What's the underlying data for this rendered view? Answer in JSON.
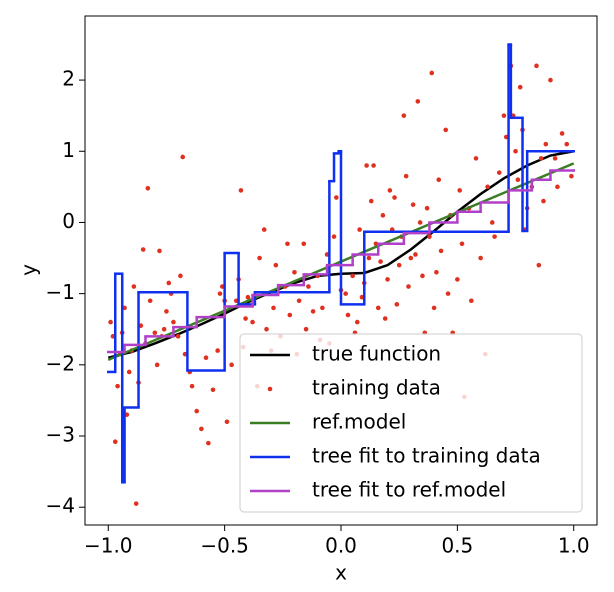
{
  "chart_data": {
    "type": "line",
    "x_label": "x",
    "y_label": "y",
    "xlim": [
      -1.1,
      1.1
    ],
    "ylim": [
      -4.25,
      2.9
    ],
    "xticks": [
      {
        "value": -1.0,
        "label": "−1.0"
      },
      {
        "value": -0.5,
        "label": "−0.5"
      },
      {
        "value": 0.0,
        "label": "0.0"
      },
      {
        "value": 0.5,
        "label": "0.5"
      },
      {
        "value": 1.0,
        "label": "1.0"
      }
    ],
    "yticks": [
      {
        "value": -4,
        "label": "−4"
      },
      {
        "value": -3,
        "label": "−3"
      },
      {
        "value": -2,
        "label": "−2"
      },
      {
        "value": -1,
        "label": "−1"
      },
      0,
      1,
      2
    ],
    "legend": "lower right",
    "series": [
      {
        "name": "true function",
        "type": "line",
        "color": "#000000",
        "x": [
          -1.0,
          -0.9,
          -0.8,
          -0.7,
          -0.6,
          -0.5,
          -0.4,
          -0.3,
          -0.2,
          -0.1,
          0.0,
          0.1,
          0.2,
          0.3,
          0.4,
          0.5,
          0.6,
          0.7,
          0.8,
          0.9,
          1.0
        ],
        "values": [
          -1.9,
          -1.82,
          -1.7,
          -1.57,
          -1.43,
          -1.28,
          -1.12,
          -0.98,
          -0.85,
          -0.75,
          -0.72,
          -0.71,
          -0.6,
          -0.38,
          -0.12,
          0.15,
          0.4,
          0.62,
          0.8,
          0.94,
          1.0
        ]
      },
      {
        "name": "training data",
        "type": "scatter",
        "color": "#e03020",
        "x": [
          -0.99,
          -0.98,
          -0.97,
          -0.96,
          -0.95,
          -0.94,
          -0.93,
          -0.92,
          -0.91,
          -0.9,
          -0.89,
          -0.88,
          -0.87,
          -0.86,
          -0.85,
          -0.84,
          -0.83,
          -0.82,
          -0.8,
          -0.79,
          -0.78,
          -0.77,
          -0.76,
          -0.75,
          -0.74,
          -0.73,
          -0.72,
          -0.7,
          -0.69,
          -0.68,
          -0.67,
          -0.65,
          -0.64,
          -0.62,
          -0.6,
          -0.58,
          -0.57,
          -0.55,
          -0.53,
          -0.52,
          -0.51,
          -0.5,
          -0.49,
          -0.47,
          -0.45,
          -0.44,
          -0.43,
          -0.42,
          -0.41,
          -0.4,
          -0.38,
          -0.36,
          -0.35,
          -0.33,
          -0.32,
          -0.3,
          -0.29,
          -0.28,
          -0.26,
          -0.24,
          -0.23,
          -0.22,
          -0.2,
          -0.19,
          -0.18,
          -0.16,
          -0.15,
          -0.14,
          -0.12,
          -0.1,
          -0.09,
          -0.08,
          -0.06,
          -0.05,
          -0.03,
          -0.02,
          0.0,
          0.02,
          0.03,
          0.05,
          0.06,
          0.07,
          0.08,
          0.09,
          0.1,
          0.11,
          0.12,
          0.13,
          0.14,
          0.15,
          0.16,
          0.17,
          0.18,
          0.19,
          0.2,
          0.21,
          0.22,
          0.23,
          0.24,
          0.25,
          0.26,
          0.27,
          0.28,
          0.29,
          0.3,
          0.31,
          0.32,
          0.33,
          0.34,
          0.35,
          0.36,
          0.37,
          0.38,
          0.39,
          0.4,
          0.41,
          0.42,
          0.43,
          0.45,
          0.46,
          0.47,
          0.48,
          0.5,
          0.51,
          0.52,
          0.53,
          0.55,
          0.56,
          0.58,
          0.6,
          0.62,
          0.63,
          0.65,
          0.66,
          0.68,
          0.7,
          0.71,
          0.73,
          0.74,
          0.75,
          0.76,
          0.77,
          0.78,
          0.79,
          0.8,
          0.82,
          0.84,
          0.85,
          0.86,
          0.87,
          0.88,
          0.9,
          0.92,
          0.93,
          0.95,
          0.97,
          0.99
        ],
        "values": [
          -1.4,
          -1.6,
          -3.08,
          -2.3,
          -1.85,
          -1.55,
          -1.2,
          -2.7,
          -2.1,
          -1.8,
          -0.9,
          -3.95,
          -2.25,
          -1.45,
          -0.38,
          -1.7,
          0.48,
          -1.1,
          -1.55,
          -2.0,
          -0.4,
          -1.6,
          -1.5,
          -1.25,
          -0.85,
          -1.0,
          -1.4,
          -1.6,
          -0.75,
          0.92,
          -1.85,
          -2.1,
          -2.3,
          -2.65,
          -2.9,
          -1.9,
          -3.1,
          -2.35,
          -1.8,
          -1.0,
          -0.9,
          -1.1,
          -2.8,
          -2.0,
          -1.1,
          -0.8,
          0.45,
          -1.75,
          -1.35,
          -1.05,
          -1.4,
          -2.3,
          -0.5,
          -0.1,
          -1.5,
          -1.8,
          -1.2,
          -0.6,
          -1.6,
          -0.9,
          -0.3,
          -1.3,
          -0.7,
          -1.85,
          -1.1,
          -0.3,
          -1.5,
          -0.9,
          -1.25,
          -0.75,
          -1.65,
          -1.2,
          -0.45,
          -1.7,
          -0.2,
          0.35,
          -0.95,
          -1.0,
          -1.3,
          -0.75,
          -1.55,
          -1.4,
          -0.1,
          -1.05,
          -0.85,
          0.8,
          -0.5,
          0.3,
          0.8,
          -0.3,
          -1.2,
          -0.55,
          0.1,
          -1.35,
          -0.8,
          0.45,
          -0.1,
          0.35,
          -1.15,
          -0.6,
          -0.2,
          1.5,
          0.65,
          -0.9,
          -0.5,
          0.25,
          -0.45,
          1.7,
          0.0,
          -0.75,
          -1.55,
          0.2,
          -0.2,
          2.1,
          -1.2,
          -0.7,
          0.6,
          -0.4,
          1.3,
          -1.0,
          0.1,
          -1.55,
          -0.8,
          0.45,
          -0.3,
          -2.45,
          0.2,
          -1.1,
          0.9,
          -0.5,
          -1.85,
          0.5,
          0.0,
          -0.2,
          0.7,
          1.5,
          1.2,
          2.2,
          1.5,
          1.0,
          0.6,
          1.9,
          1.3,
          -0.1,
          0.2,
          0.5,
          2.2,
          -0.6,
          0.9,
          0.3,
          1.1,
          2.0,
          0.9,
          0.5,
          1.25,
          1.1,
          0.65
        ]
      },
      {
        "name": "ref.model",
        "type": "line",
        "color": "#3a7d22",
        "x": [
          -1.0,
          1.0
        ],
        "values": [
          -1.93,
          0.83
        ]
      },
      {
        "name": "tree fit to training data",
        "type": "steps",
        "color": "#1030f0",
        "x": [
          -1.0,
          -0.97,
          -0.94,
          -0.93,
          -0.87,
          -0.66,
          -0.5,
          -0.44,
          -0.37,
          -0.05,
          -0.03,
          -0.01,
          0.0,
          0.1,
          0.72,
          0.73,
          0.78,
          0.8,
          1.0
        ],
        "values": [
          -2.1,
          -0.72,
          -3.65,
          -2.6,
          -0.98,
          -2.08,
          -0.43,
          -1.15,
          -0.98,
          0.58,
          0.97,
          1.0,
          -1.15,
          -0.13,
          2.5,
          1.47,
          -0.12,
          1.0,
          1.0
        ]
      },
      {
        "name": "tree fit to ref.model",
        "type": "steps",
        "color": "#b040c8",
        "x": [
          -1.0,
          -0.93,
          -0.84,
          -0.72,
          -0.62,
          -0.5,
          -0.38,
          -0.27,
          -0.16,
          -0.06,
          0.05,
          0.16,
          0.27,
          0.38,
          0.5,
          0.6,
          0.72,
          0.82,
          0.9,
          1.0
        ],
        "values": [
          -1.82,
          -1.72,
          -1.6,
          -1.47,
          -1.33,
          -1.18,
          -1.02,
          -0.88,
          -0.73,
          -0.6,
          -0.45,
          -0.3,
          -0.15,
          0.0,
          0.15,
          0.28,
          0.45,
          0.6,
          0.73,
          0.73
        ]
      }
    ]
  }
}
